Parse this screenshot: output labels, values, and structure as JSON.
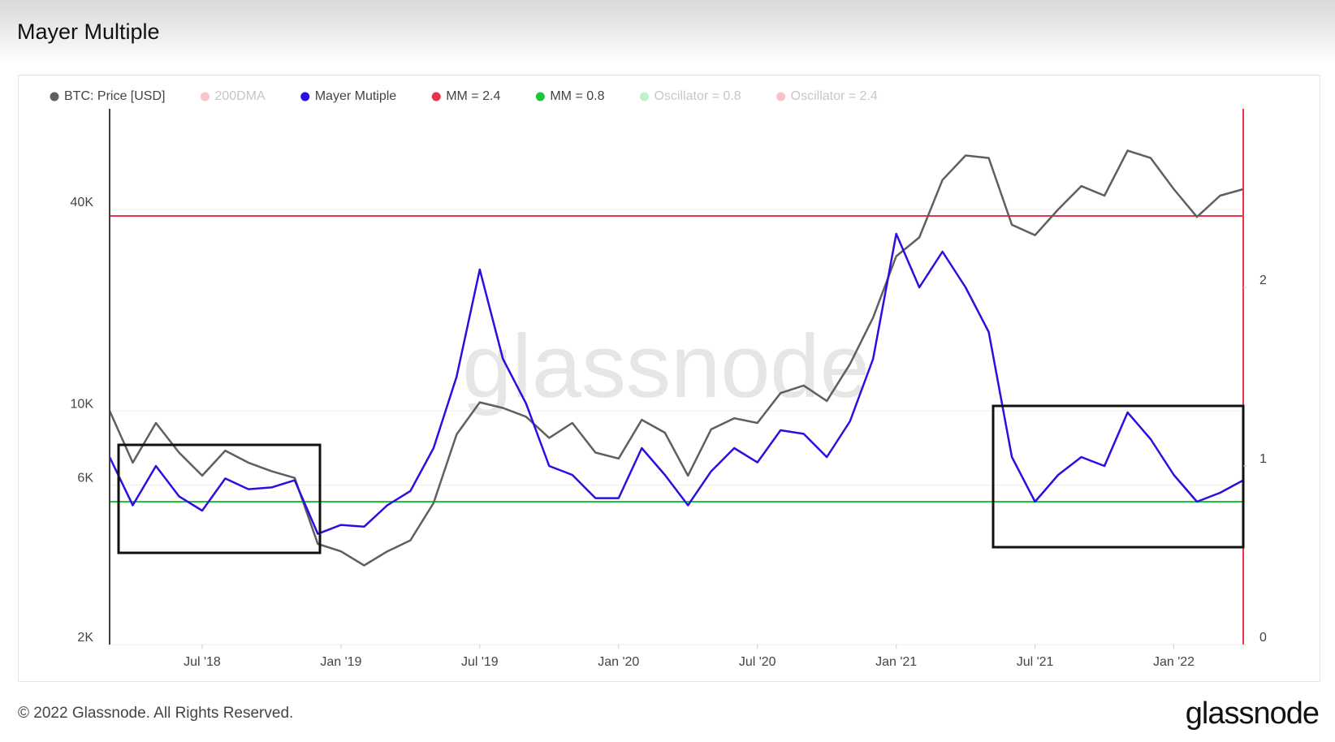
{
  "chart_data": {
    "type": "line",
    "title": "Mayer Multiple",
    "watermark": "glassnode",
    "footer": "© 2022 Glassnode. All Rights Reserved.",
    "logo": "glassnode",
    "x": [
      "2018-03",
      "2018-04",
      "2018-05",
      "2018-06",
      "2018-07",
      "2018-08",
      "2018-09",
      "2018-10",
      "2018-11",
      "2018-12",
      "2019-01",
      "2019-02",
      "2019-03",
      "2019-04",
      "2019-05",
      "2019-06",
      "2019-07",
      "2019-08",
      "2019-09",
      "2019-10",
      "2019-11",
      "2019-12",
      "2020-01",
      "2020-02",
      "2020-03",
      "2020-04",
      "2020-05",
      "2020-06",
      "2020-07",
      "2020-08",
      "2020-09",
      "2020-10",
      "2020-11",
      "2020-12",
      "2021-01",
      "2021-02",
      "2021-03",
      "2021-04",
      "2021-05",
      "2021-06",
      "2021-07",
      "2021-08",
      "2021-09",
      "2021-10",
      "2021-11",
      "2021-12",
      "2022-01",
      "2022-02",
      "2022-03",
      "2022-04"
    ],
    "xlim": [
      "2018-03",
      "2022-04"
    ],
    "xticks": [
      {
        "value": "2018-07",
        "label": "Jul '18"
      },
      {
        "value": "2019-01",
        "label": "Jan '19"
      },
      {
        "value": "2019-07",
        "label": "Jul '19"
      },
      {
        "value": "2020-01",
        "label": "Jan '20"
      },
      {
        "value": "2020-07",
        "label": "Jul '20"
      },
      {
        "value": "2021-01",
        "label": "Jan '21"
      },
      {
        "value": "2021-07",
        "label": "Jul '21"
      },
      {
        "value": "2022-01",
        "label": "Jan '22"
      }
    ],
    "ylog": true,
    "ylim": [
      2000,
      80000
    ],
    "yticks": [
      {
        "value": 2000,
        "label": "2K"
      },
      {
        "value": 6000,
        "label": "6K"
      },
      {
        "value": 10000,
        "label": "10K"
      },
      {
        "value": 40000,
        "label": "40K"
      }
    ],
    "y2lim": [
      0,
      3
    ],
    "y2ticks": [
      0,
      1,
      2
    ],
    "grid": true,
    "series": [
      {
        "name": "BTC: Price [USD]",
        "color": "#5f5f5f",
        "values": [
          10000,
          7000,
          9200,
          7500,
          6400,
          7600,
          7000,
          6600,
          6300,
          4000,
          3800,
          3450,
          3800,
          4100,
          5300,
          8500,
          10600,
          10200,
          9600,
          8300,
          9200,
          7500,
          7200,
          9400,
          8600,
          6400,
          8800,
          9500,
          9200,
          11300,
          11900,
          10700,
          13800,
          19000,
          29000,
          33000,
          49000,
          58000,
          57000,
          36000,
          33500,
          40000,
          47000,
          44000,
          60000,
          57000,
          46000,
          38000,
          44000,
          46000
        ]
      },
      {
        "name": "Mayer Mutiple",
        "color": "#2a10e0",
        "axis": "y2",
        "values": [
          1.05,
          0.78,
          1.0,
          0.83,
          0.75,
          0.93,
          0.87,
          0.88,
          0.92,
          0.62,
          0.67,
          0.66,
          0.78,
          0.86,
          1.1,
          1.5,
          2.1,
          1.6,
          1.35,
          1.0,
          0.95,
          0.82,
          0.82,
          1.1,
          0.95,
          0.78,
          0.97,
          1.1,
          1.02,
          1.2,
          1.18,
          1.05,
          1.25,
          1.6,
          2.3,
          2.0,
          2.2,
          2.0,
          1.75,
          1.05,
          0.8,
          0.95,
          1.05,
          1.0,
          1.3,
          1.15,
          0.95,
          0.8,
          0.85,
          0.92
        ]
      }
    ],
    "hlines": [
      {
        "name": "MM = 2.4",
        "value": 2.4,
        "color": "#e8334a",
        "axis": "y2"
      },
      {
        "name": "MM = 0.8",
        "value": 0.8,
        "color": "#1ec43a",
        "axis": "y2"
      }
    ],
    "inactive_legend": [
      {
        "name": "200DMA",
        "color": "#e8434f"
      },
      {
        "name": "Oscillator = 0.8",
        "color": "#2ecc55"
      },
      {
        "name": "Oscillator = 2.4",
        "color": "#e8334a"
      }
    ]
  }
}
